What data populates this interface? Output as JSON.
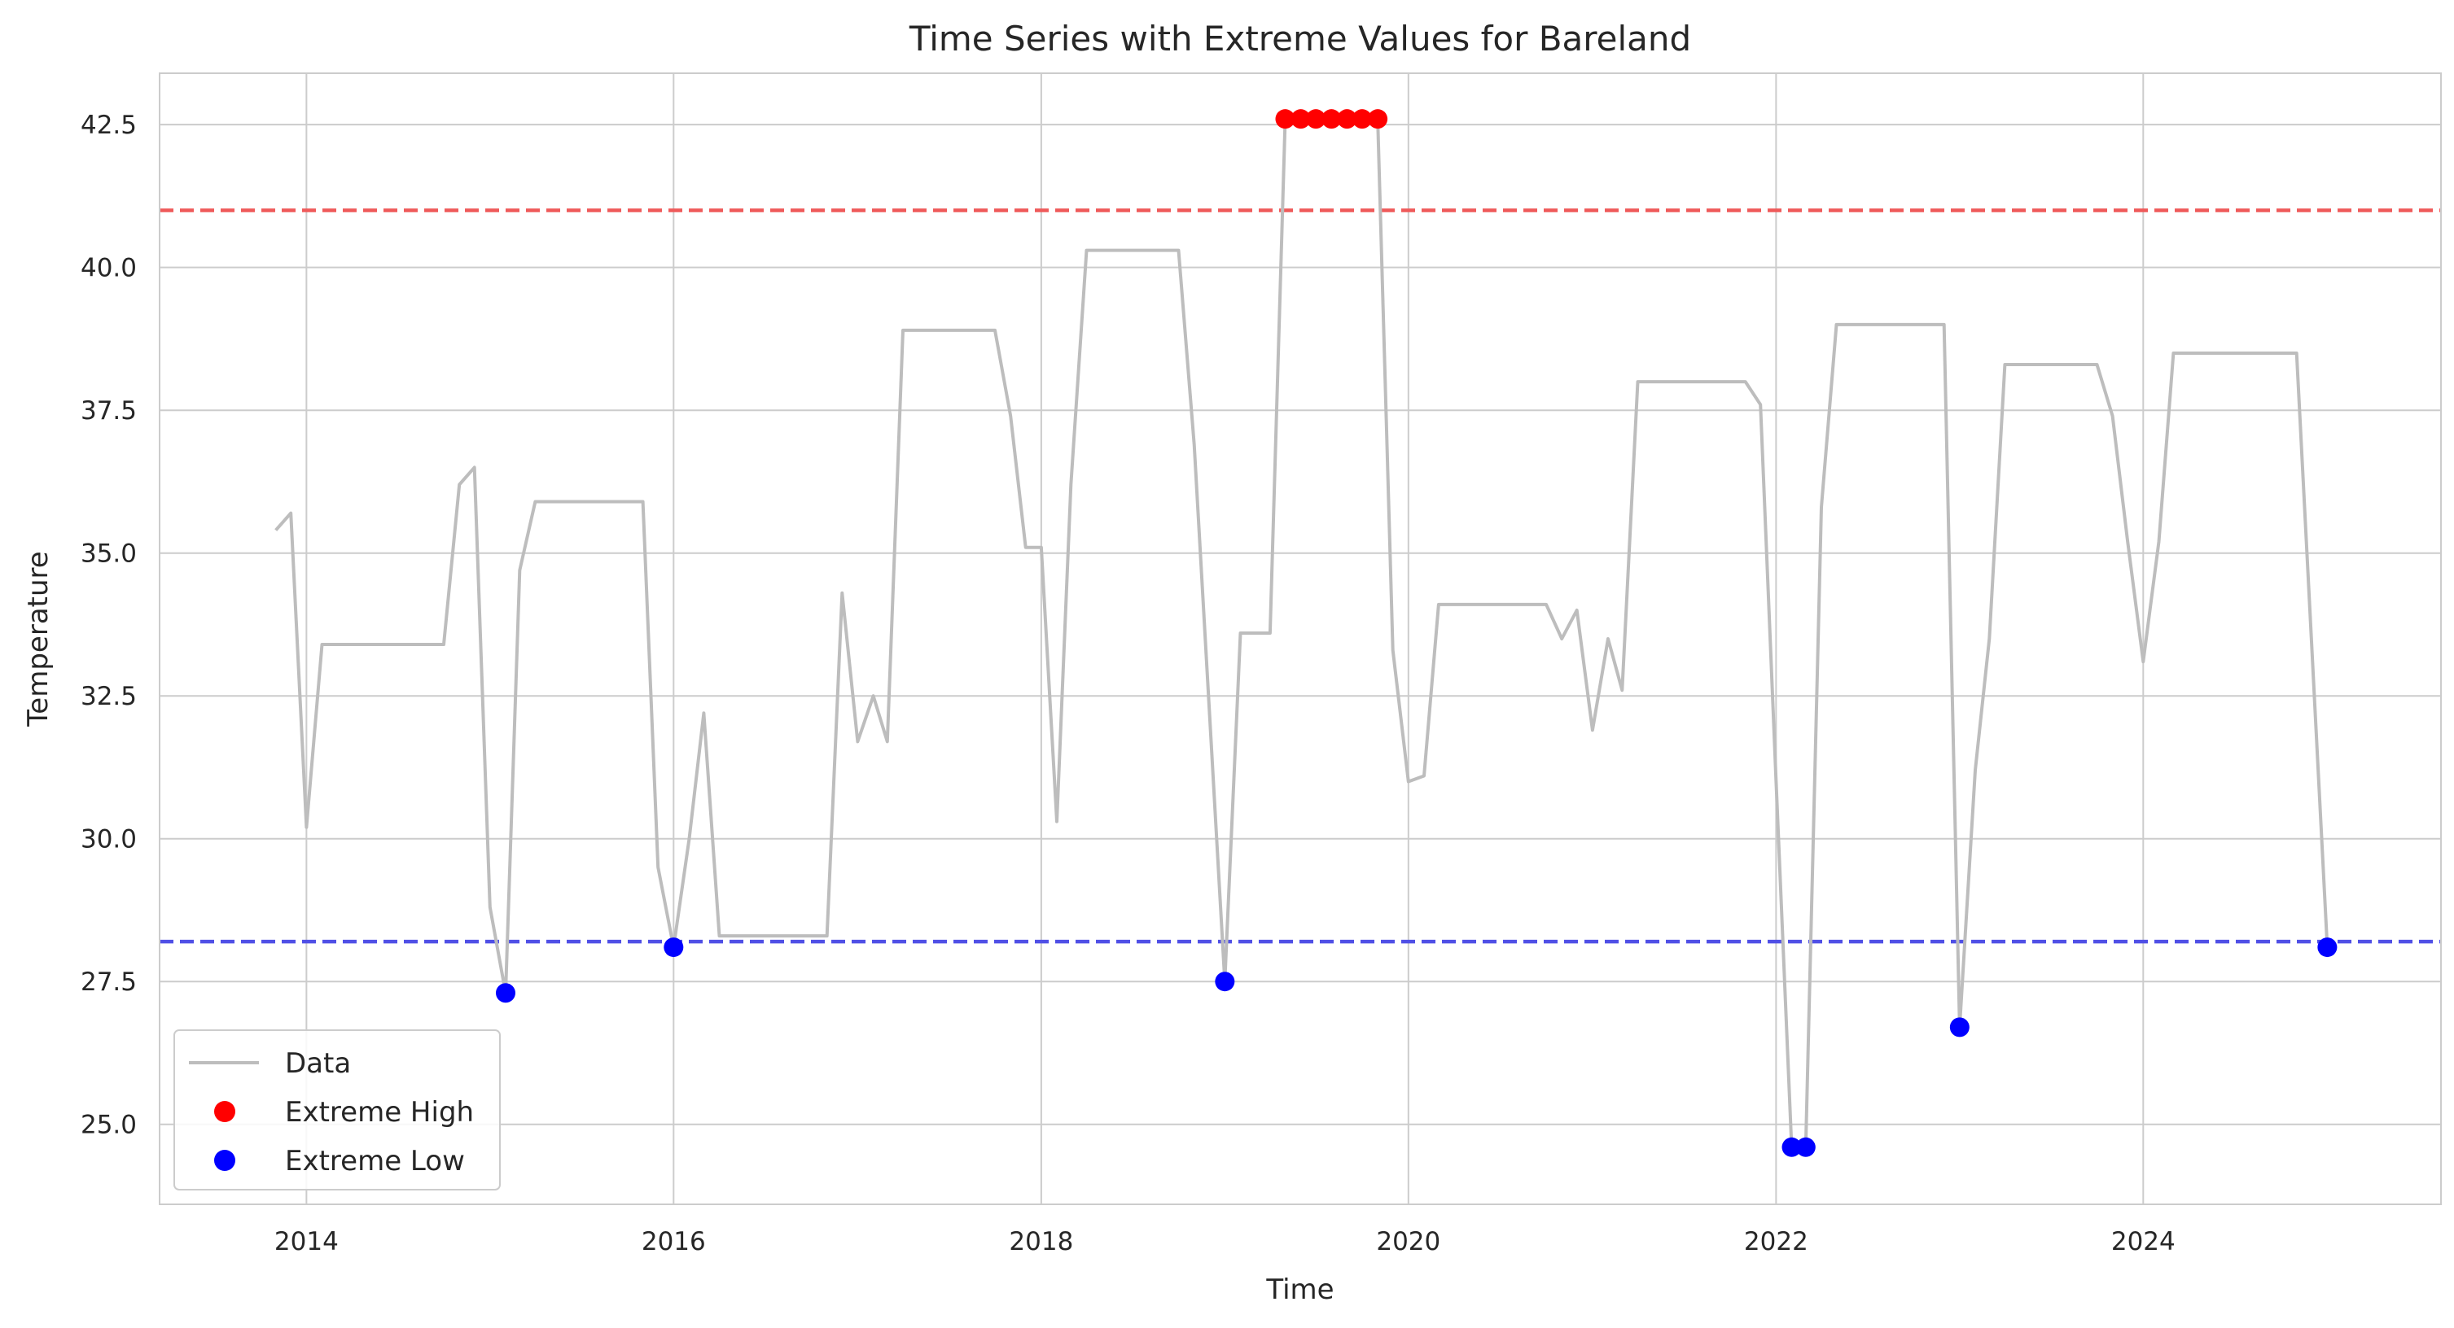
{
  "chart_data": {
    "type": "line",
    "title": "Time Series with Extreme Values for Bareland",
    "xlabel": "Time",
    "ylabel": "Temperature",
    "xlim": [
      "2013-03-15",
      "2025-08-15"
    ],
    "ylim": [
      23.6,
      43.4
    ],
    "x_ticks": [
      "2014",
      "2016",
      "2018",
      "2020",
      "2022",
      "2024"
    ],
    "y_ticks": [
      "25.0",
      "27.5",
      "30.0",
      "32.5",
      "35.0",
      "37.5",
      "40.0",
      "42.5"
    ],
    "grid": true,
    "legend_position": "lower-left",
    "legend": [
      "Data",
      "Extreme High",
      "Extreme Low"
    ],
    "colors": {
      "data": "#bdbdbd",
      "high": "#ff0000",
      "low": "#0000ff",
      "high_line": "#ef5a5a",
      "low_line": "#5050e6",
      "grid": "#cccccc"
    },
    "thresholds": {
      "high": 41.0,
      "low": 28.2
    },
    "series": [
      {
        "name": "Data",
        "points": [
          [
            "2013-11-01",
            35.4
          ],
          [
            "2013-12-01",
            35.7
          ],
          [
            "2014-01-01",
            30.2
          ],
          [
            "2014-02-01",
            33.4
          ],
          [
            "2014-10-01",
            33.4
          ],
          [
            "2014-11-01",
            36.2
          ],
          [
            "2014-12-01",
            36.5
          ],
          [
            "2015-01-01",
            28.8
          ],
          [
            "2015-02-01",
            27.3
          ],
          [
            "2015-03-01",
            34.7
          ],
          [
            "2015-04-01",
            35.9
          ],
          [
            "2015-11-01",
            35.9
          ],
          [
            "2015-12-01",
            29.5
          ],
          [
            "2016-01-01",
            28.1
          ],
          [
            "2016-02-01",
            30.0
          ],
          [
            "2016-03-01",
            32.2
          ],
          [
            "2016-04-01",
            28.3
          ],
          [
            "2016-11-01",
            28.3
          ],
          [
            "2016-12-01",
            34.3
          ],
          [
            "2017-01-01",
            31.7
          ],
          [
            "2017-02-01",
            32.5
          ],
          [
            "2017-03-01",
            31.7
          ],
          [
            "2017-04-01",
            38.9
          ],
          [
            "2017-10-01",
            38.9
          ],
          [
            "2017-11-01",
            37.4
          ],
          [
            "2017-12-01",
            35.1
          ],
          [
            "2018-01-01",
            35.1
          ],
          [
            "2018-02-01",
            30.3
          ],
          [
            "2018-03-01",
            36.2
          ],
          [
            "2018-04-01",
            40.3
          ],
          [
            "2018-10-01",
            40.3
          ],
          [
            "2018-11-01",
            36.9
          ],
          [
            "2019-01-01",
            27.5
          ],
          [
            "2019-02-01",
            33.6
          ],
          [
            "2019-04-01",
            33.6
          ],
          [
            "2019-05-01",
            42.6
          ],
          [
            "2019-11-01",
            42.6
          ],
          [
            "2019-12-01",
            33.3
          ],
          [
            "2020-01-01",
            31.0
          ],
          [
            "2020-02-01",
            31.1
          ],
          [
            "2020-03-01",
            34.1
          ],
          [
            "2020-10-01",
            34.1
          ],
          [
            "2020-11-01",
            33.5
          ],
          [
            "2020-12-01",
            34.0
          ],
          [
            "2021-01-01",
            31.9
          ],
          [
            "2021-02-01",
            33.5
          ],
          [
            "2021-03-01",
            32.6
          ],
          [
            "2021-04-01",
            38.0
          ],
          [
            "2021-11-01",
            38.0
          ],
          [
            "2021-12-01",
            37.6
          ],
          [
            "2022-01-01",
            31.0
          ],
          [
            "2022-02-01",
            24.6
          ],
          [
            "2022-03-01",
            24.6
          ],
          [
            "2022-04-01",
            35.8
          ],
          [
            "2022-05-01",
            39.0
          ],
          [
            "2022-12-01",
            39.0
          ],
          [
            "2023-01-01",
            26.7
          ],
          [
            "2023-02-01",
            31.2
          ],
          [
            "2023-03-01",
            33.5
          ],
          [
            "2023-04-01",
            38.3
          ],
          [
            "2023-10-01",
            38.3
          ],
          [
            "2023-11-01",
            37.4
          ],
          [
            "2023-12-01",
            35.2
          ],
          [
            "2024-01-01",
            33.1
          ],
          [
            "2024-02-01",
            35.2
          ],
          [
            "2024-03-01",
            38.5
          ],
          [
            "2024-11-01",
            38.5
          ],
          [
            "2025-01-01",
            28.1
          ]
        ]
      },
      {
        "name": "Extreme High",
        "points": [
          [
            "2019-05-01",
            42.6
          ],
          [
            "2019-06-01",
            42.6
          ],
          [
            "2019-07-01",
            42.6
          ],
          [
            "2019-08-01",
            42.6
          ],
          [
            "2019-09-01",
            42.6
          ],
          [
            "2019-10-01",
            42.6
          ],
          [
            "2019-11-01",
            42.6
          ]
        ]
      },
      {
        "name": "Extreme Low",
        "points": [
          [
            "2015-02-01",
            27.3
          ],
          [
            "2016-01-01",
            28.1
          ],
          [
            "2019-01-01",
            27.5
          ],
          [
            "2022-02-01",
            24.6
          ],
          [
            "2022-03-01",
            24.6
          ],
          [
            "2023-01-01",
            26.7
          ],
          [
            "2025-01-01",
            28.1
          ]
        ]
      }
    ]
  }
}
